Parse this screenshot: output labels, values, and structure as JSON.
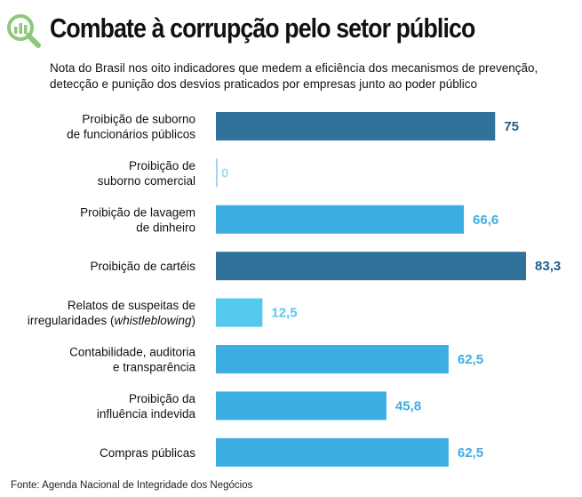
{
  "title": "Combate à corrupção pelo setor público",
  "subtitle": "Nota do Brasil nos oito indicadores que medem a eficiência dos mecanismos de prevenção, detecção e punição dos desvios praticados por empresas junto ao poder público",
  "source": "Fonte: Agenda Nacional de Integridade dos Negócios",
  "icon": "magnifier-bar-chart-icon",
  "colors": {
    "dark": "#30729a",
    "light": "#3daee3",
    "lighter": "#55c8f0",
    "zero": "#9dd8f3",
    "icon": "#8cc97a"
  },
  "chart_data": {
    "type": "bar",
    "orientation": "horizontal",
    "xlim": [
      0,
      100
    ],
    "grid": false,
    "categories": [
      [
        "Proibição de suborno",
        "de funcionários públicos"
      ],
      [
        "Proibição de",
        "suborno comercial"
      ],
      [
        "Proibição de lavagem",
        "de dinheiro"
      ],
      [
        "Proibição de cartéis"
      ],
      [
        "Relatos de suspeitas de",
        "irregularidades (whistleblowing)"
      ],
      [
        "Contabilidade, auditoria",
        "e transparência"
      ],
      [
        "Proibição da",
        "influência indevida"
      ],
      [
        "Compras públicas"
      ]
    ],
    "values": [
      75,
      0,
      66.6,
      83.3,
      12.5,
      62.5,
      45.8,
      62.5
    ],
    "labels": [
      "75",
      "0",
      "66,6",
      "83,3",
      "12,5",
      "62,5",
      "45,8",
      "62,5"
    ],
    "bar_colors": [
      "#30729a",
      "#9dd8f3",
      "#3daee3",
      "#30729a",
      "#55c8f0",
      "#3daee3",
      "#3daee3",
      "#3daee3"
    ],
    "label_colors": [
      "#1f5f8a",
      "#a9dcf4",
      "#3daee3",
      "#1f5f8a",
      "#55c8f0",
      "#3daee3",
      "#3daee3",
      "#3daee3"
    ]
  }
}
